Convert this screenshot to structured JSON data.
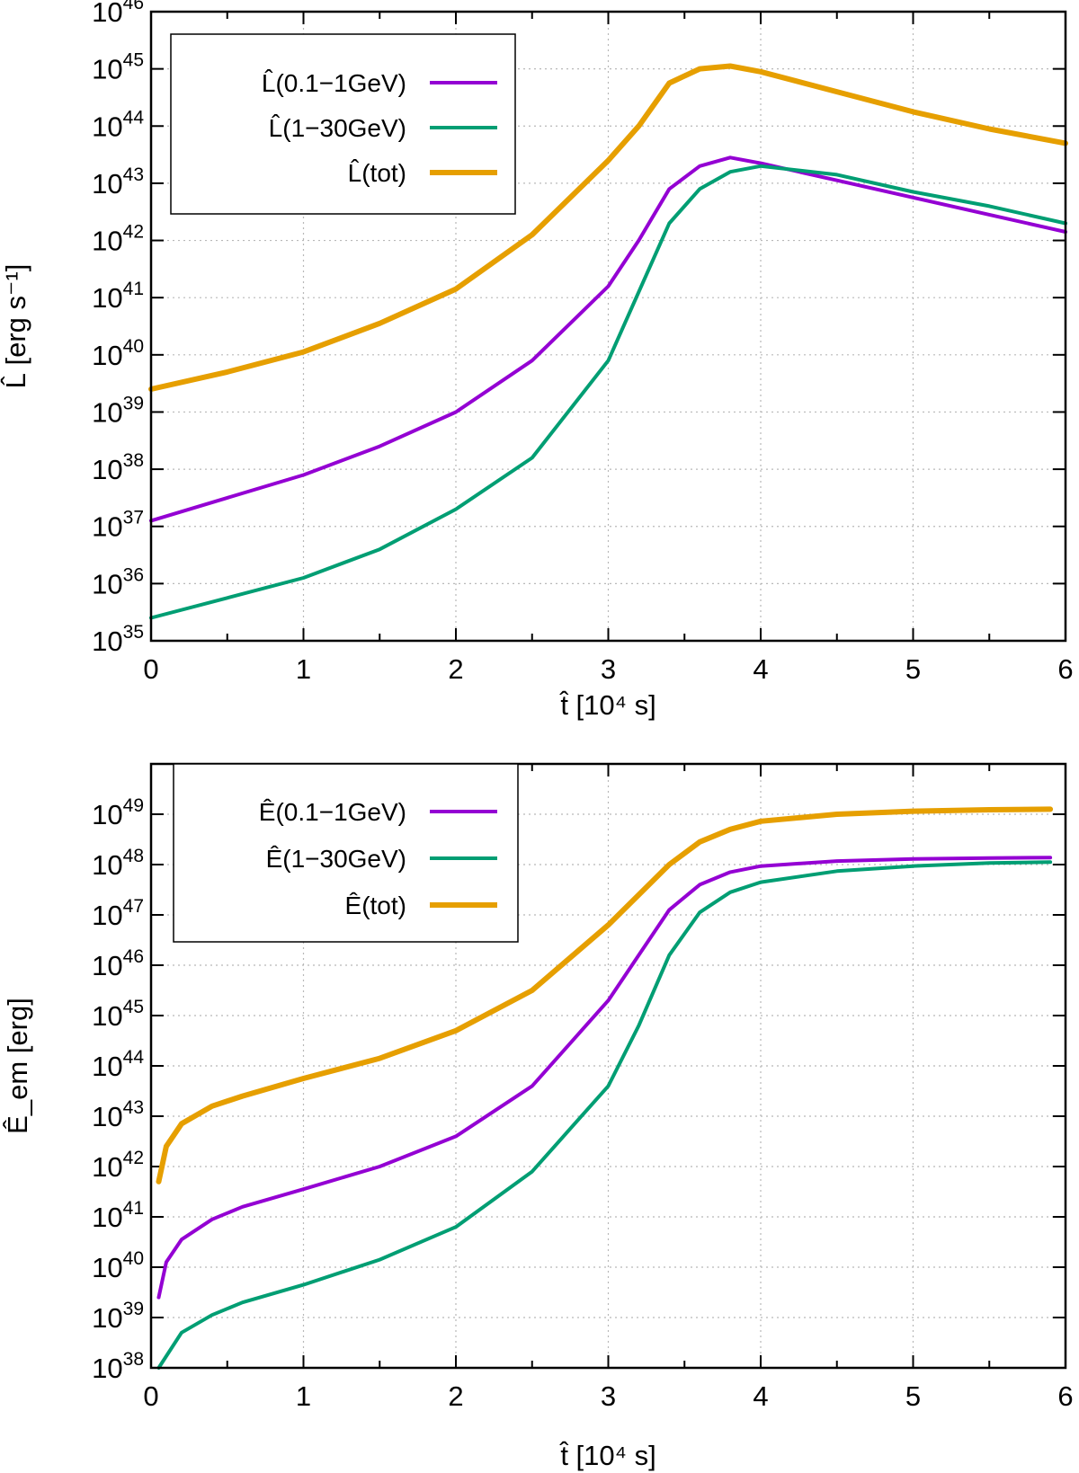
{
  "chart_data": [
    {
      "type": "line",
      "name": "luminosity",
      "xlabel": "t̂ [10⁴ s]",
      "ylabel": "L̂ [erg s⁻¹]",
      "xlim": [
        0,
        6
      ],
      "ylog": true,
      "ylim_exp": [
        35,
        46
      ],
      "x_ticks": [
        "0",
        "1",
        "2",
        "3",
        "4",
        "5",
        "6"
      ],
      "y_tick_exps": [
        "35",
        "36",
        "37",
        "38",
        "39",
        "40",
        "41",
        "42",
        "43",
        "44",
        "45",
        "46"
      ],
      "legend_position": "top-left",
      "series": [
        {
          "name": "L̂(0.1−1GeV)",
          "color": "#9400d3",
          "width": 4,
          "x": [
            0,
            0.5,
            1,
            1.5,
            2,
            2.5,
            3,
            3.2,
            3.4,
            3.6,
            3.8,
            4,
            4.5,
            5,
            5.5,
            6
          ],
          "y_log": [
            37.1,
            37.5,
            37.9,
            38.4,
            39.0,
            39.9,
            41.2,
            42.0,
            42.9,
            43.3,
            43.45,
            43.35,
            43.05,
            42.75,
            42.45,
            42.15
          ]
        },
        {
          "name": "L̂(1−30GeV)",
          "color": "#009e73",
          "width": 4,
          "x": [
            0,
            0.5,
            1,
            1.5,
            2,
            2.5,
            3,
            3.2,
            3.4,
            3.6,
            3.8,
            4,
            4.5,
            5,
            5.5,
            6
          ],
          "y_log": [
            35.4,
            35.75,
            36.1,
            36.6,
            37.3,
            38.2,
            39.9,
            41.1,
            42.3,
            42.9,
            43.2,
            43.3,
            43.15,
            42.85,
            42.6,
            42.3
          ]
        },
        {
          "name": "L̂(tot)",
          "color": "#e69f00",
          "width": 6,
          "x": [
            0,
            0.5,
            1,
            1.5,
            2,
            2.5,
            3,
            3.2,
            3.4,
            3.6,
            3.8,
            4,
            4.5,
            5,
            5.5,
            6
          ],
          "y_log": [
            39.4,
            39.7,
            40.05,
            40.55,
            41.15,
            42.1,
            43.4,
            44.0,
            44.75,
            45.0,
            45.05,
            44.95,
            44.6,
            44.25,
            43.95,
            43.7
          ]
        }
      ]
    },
    {
      "type": "line",
      "name": "energy",
      "xlabel": "t̂ [10⁴ s]",
      "ylabel": "Ê_em [erg]",
      "xlim": [
        0,
        6
      ],
      "ylog": true,
      "ylim_exp": [
        38,
        50
      ],
      "x_ticks": [
        "0",
        "1",
        "2",
        "3",
        "4",
        "5",
        "6"
      ],
      "y_tick_exps": [
        "38",
        "39",
        "40",
        "41",
        "42",
        "43",
        "44",
        "45",
        "46",
        "47",
        "48",
        "49"
      ],
      "legend_position": "top-left",
      "series": [
        {
          "name": "Ê(0.1−1GeV)",
          "color": "#9400d3",
          "width": 4,
          "x": [
            0.05,
            0.1,
            0.2,
            0.4,
            0.6,
            1,
            1.5,
            2,
            2.5,
            3,
            3.2,
            3.4,
            3.6,
            3.8,
            4,
            4.5,
            5,
            5.5,
            5.9
          ],
          "y_log": [
            39.4,
            40.1,
            40.55,
            40.95,
            41.2,
            41.55,
            42.0,
            42.6,
            43.6,
            45.3,
            46.2,
            47.1,
            47.6,
            47.85,
            47.97,
            48.07,
            48.11,
            48.13,
            48.14
          ]
        },
        {
          "name": "Ê(1−30GeV)",
          "color": "#009e73",
          "width": 4,
          "x": [
            0.05,
            0.2,
            0.4,
            0.6,
            1,
            1.5,
            2,
            2.5,
            3,
            3.2,
            3.4,
            3.6,
            3.8,
            4,
            4.5,
            5,
            5.5,
            5.9
          ],
          "y_log": [
            38.0,
            38.7,
            39.05,
            39.3,
            39.65,
            40.15,
            40.8,
            41.9,
            43.6,
            44.8,
            46.2,
            47.05,
            47.45,
            47.65,
            47.87,
            47.97,
            48.03,
            48.05
          ]
        },
        {
          "name": "Ê(tot)",
          "color": "#e69f00",
          "width": 6,
          "x": [
            0.05,
            0.1,
            0.2,
            0.4,
            0.6,
            1,
            1.5,
            2,
            2.5,
            3,
            3.2,
            3.4,
            3.6,
            3.8,
            4,
            4.5,
            5,
            5.5,
            5.9
          ],
          "y_log": [
            41.7,
            42.4,
            42.85,
            43.2,
            43.4,
            43.75,
            44.15,
            44.7,
            45.5,
            46.8,
            47.4,
            48.0,
            48.45,
            48.7,
            48.86,
            49.0,
            49.06,
            49.09,
            49.1
          ]
        }
      ]
    }
  ]
}
